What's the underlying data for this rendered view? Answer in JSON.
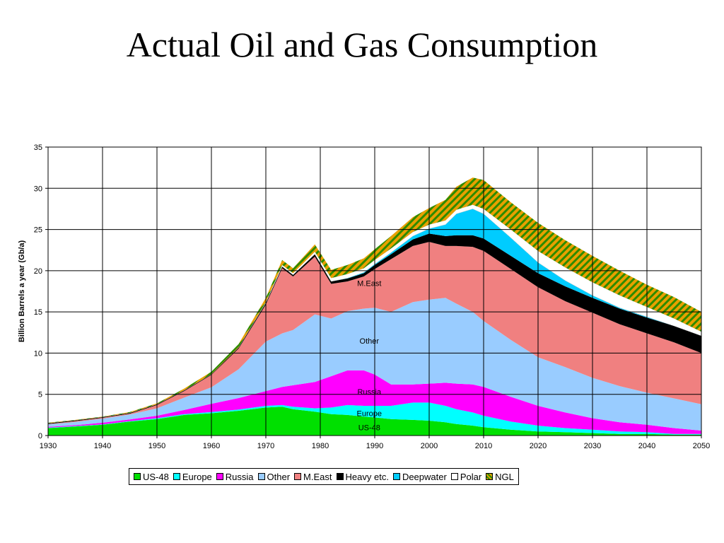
{
  "title": "Actual Oil and Gas Consumption",
  "chart_data": {
    "type": "area",
    "stacked": true,
    "ylabel": "Billion Barrels a year (Gb/a)",
    "xlim": [
      1930,
      2050
    ],
    "ylim": [
      0,
      35
    ],
    "x_ticks": [
      1930,
      1940,
      1950,
      1960,
      1970,
      1980,
      1990,
      2000,
      2010,
      2020,
      2030,
      2040,
      2050
    ],
    "y_ticks": [
      0,
      5,
      10,
      15,
      20,
      25,
      30,
      35
    ],
    "grid": true,
    "legend_position": "bottom",
    "x": [
      1930,
      1935,
      1940,
      1945,
      1950,
      1955,
      1960,
      1965,
      1970,
      1973,
      1975,
      1979,
      1982,
      1985,
      1988,
      1990,
      1993,
      1997,
      2000,
      2003,
      2005,
      2008,
      2010,
      2015,
      2020,
      2025,
      2030,
      2035,
      2040,
      2045,
      2050
    ],
    "series": [
      {
        "name": "US-48",
        "color": "#00e000",
        "values": [
          0.9,
          1.1,
          1.3,
          1.7,
          2.0,
          2.5,
          2.7,
          3.0,
          3.4,
          3.5,
          3.2,
          2.9,
          2.6,
          2.5,
          2.3,
          2.2,
          2.0,
          1.9,
          1.8,
          1.6,
          1.4,
          1.2,
          1.0,
          0.7,
          0.5,
          0.4,
          0.3,
          0.2,
          0.2,
          0.1,
          0.1
        ]
      },
      {
        "name": "Europe",
        "color": "#00ffff",
        "values": [
          0.05,
          0.05,
          0.05,
          0.05,
          0.1,
          0.1,
          0.15,
          0.15,
          0.2,
          0.2,
          0.3,
          0.4,
          0.8,
          1.2,
          1.3,
          1.4,
          1.6,
          2.1,
          2.2,
          2.0,
          1.8,
          1.6,
          1.4,
          1.0,
          0.7,
          0.5,
          0.4,
          0.3,
          0.2,
          0.1,
          0.1
        ]
      },
      {
        "name": "Russia",
        "color": "#ff00ff",
        "values": [
          0.1,
          0.1,
          0.2,
          0.2,
          0.3,
          0.5,
          1.0,
          1.4,
          1.8,
          2.2,
          2.6,
          3.2,
          3.8,
          4.2,
          4.3,
          3.8,
          2.6,
          2.2,
          2.3,
          2.8,
          3.1,
          3.4,
          3.5,
          3.0,
          2.4,
          1.9,
          1.4,
          1.1,
          0.9,
          0.7,
          0.4
        ]
      },
      {
        "name": "Other",
        "color": "#99ccff",
        "values": [
          0.3,
          0.4,
          0.5,
          0.6,
          0.9,
          1.5,
          2.0,
          3.5,
          6.0,
          6.5,
          6.7,
          8.2,
          7.0,
          7.2,
          7.5,
          8.1,
          8.8,
          10.0,
          10.2,
          10.3,
          9.7,
          8.8,
          8.0,
          6.9,
          5.9,
          5.5,
          4.9,
          4.4,
          3.9,
          3.6,
          3.2
        ]
      },
      {
        "name": "M.East",
        "color": "#f08080",
        "values": [
          0.05,
          0.1,
          0.1,
          0.1,
          0.4,
          0.8,
          1.5,
          2.5,
          4.5,
          7.9,
          6.5,
          7.0,
          4.2,
          3.6,
          3.9,
          4.7,
          6.4,
          6.8,
          7.0,
          6.3,
          7.0,
          7.9,
          8.5,
          8.6,
          8.5,
          8.0,
          7.9,
          7.5,
          7.2,
          6.8,
          6.2
        ]
      },
      {
        "name": "Heavy etc.",
        "color": "#000000",
        "values": [
          0.1,
          0.1,
          0.1,
          0.1,
          0.1,
          0.1,
          0.1,
          0.15,
          0.2,
          0.2,
          0.2,
          0.3,
          0.3,
          0.35,
          0.4,
          0.5,
          0.6,
          0.8,
          1.0,
          1.2,
          1.3,
          1.4,
          1.5,
          1.6,
          1.7,
          1.8,
          1.8,
          1.9,
          1.9,
          2.0,
          2.1
        ]
      },
      {
        "name": "Deepwater",
        "color": "#00ccff",
        "values": [
          0,
          0,
          0,
          0,
          0,
          0,
          0,
          0,
          0,
          0,
          0,
          0,
          0,
          0.05,
          0.1,
          0.1,
          0.2,
          0.4,
          0.6,
          1.4,
          2.6,
          3.2,
          3.0,
          2.2,
          1.3,
          0.7,
          0.3,
          0.1,
          0.1,
          0,
          0
        ]
      },
      {
        "name": "Polar",
        "color": "#ffffff",
        "values": [
          0,
          0,
          0,
          0,
          0,
          0,
          0,
          0,
          0.1,
          0.2,
          0.2,
          0.3,
          0.4,
          0.5,
          0.5,
          0.5,
          0.5,
          0.5,
          0.5,
          0.5,
          0.5,
          0.5,
          0.6,
          1.0,
          1.4,
          1.6,
          1.6,
          1.5,
          1.2,
          0.9,
          0.5
        ]
      },
      {
        "name": "NGL",
        "color": "#e8a000",
        "pattern": "hatch",
        "values": [
          0.05,
          0.05,
          0.05,
          0.1,
          0.1,
          0.2,
          0.3,
          0.4,
          0.5,
          0.6,
          0.6,
          0.9,
          1.0,
          1.1,
          1.2,
          1.3,
          1.5,
          1.8,
          2.0,
          2.5,
          2.8,
          3.3,
          3.5,
          3.3,
          3.4,
          3.3,
          3.2,
          3.0,
          2.7,
          2.6,
          2.4
        ]
      }
    ],
    "area_labels": [
      {
        "text": "M.East",
        "x": 1989,
        "y": 18.5
      },
      {
        "text": "Other",
        "x": 1989,
        "y": 11.5
      },
      {
        "text": "Russia",
        "x": 1989,
        "y": 5.3
      },
      {
        "text": "Europe",
        "x": 1989,
        "y": 2.7
      },
      {
        "text": "US-48",
        "x": 1989,
        "y": 1.0
      }
    ]
  }
}
